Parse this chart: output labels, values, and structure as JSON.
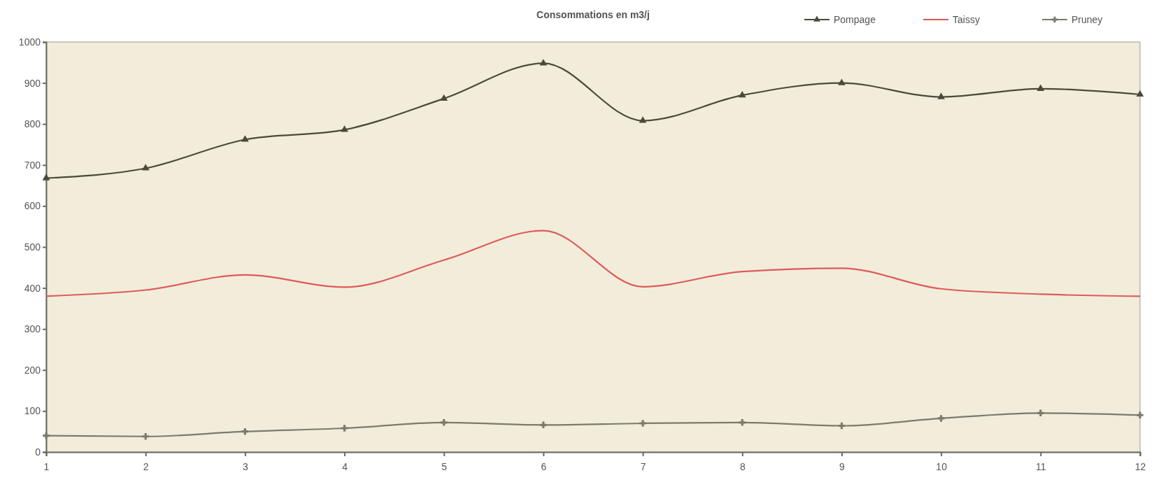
{
  "chart_data": {
    "type": "line",
    "title": "Consommations en m3/j",
    "x": [
      1,
      2,
      3,
      4,
      5,
      6,
      7,
      8,
      9,
      10,
      11,
      12
    ],
    "xlim": [
      1,
      12
    ],
    "xticks": [
      1,
      2,
      3,
      4,
      5,
      6,
      7,
      8,
      9,
      10,
      11,
      12
    ],
    "ylim": [
      0,
      1000
    ],
    "yticks": [
      0,
      100,
      200,
      300,
      400,
      500,
      600,
      700,
      800,
      900,
      1000
    ],
    "grid": false,
    "legend": "top right",
    "series": [
      {
        "name": "Pompage",
        "color": "#4a4a3a",
        "marker": "triangle",
        "values": [
          668,
          692,
          762,
          786,
          862,
          948,
          808,
          870,
          900,
          866,
          886,
          872
        ]
      },
      {
        "name": "Taissy",
        "color": "#e05a5a",
        "marker": "none",
        "values": [
          380,
          395,
          432,
          402,
          468,
          540,
          403,
          440,
          448,
          398,
          385,
          380
        ]
      },
      {
        "name": "Pruney",
        "color": "#7a7a6e",
        "marker": "cross",
        "values": [
          40,
          38,
          50,
          58,
          72,
          66,
          70,
          72,
          64,
          82,
          95,
          90
        ]
      }
    ]
  }
}
